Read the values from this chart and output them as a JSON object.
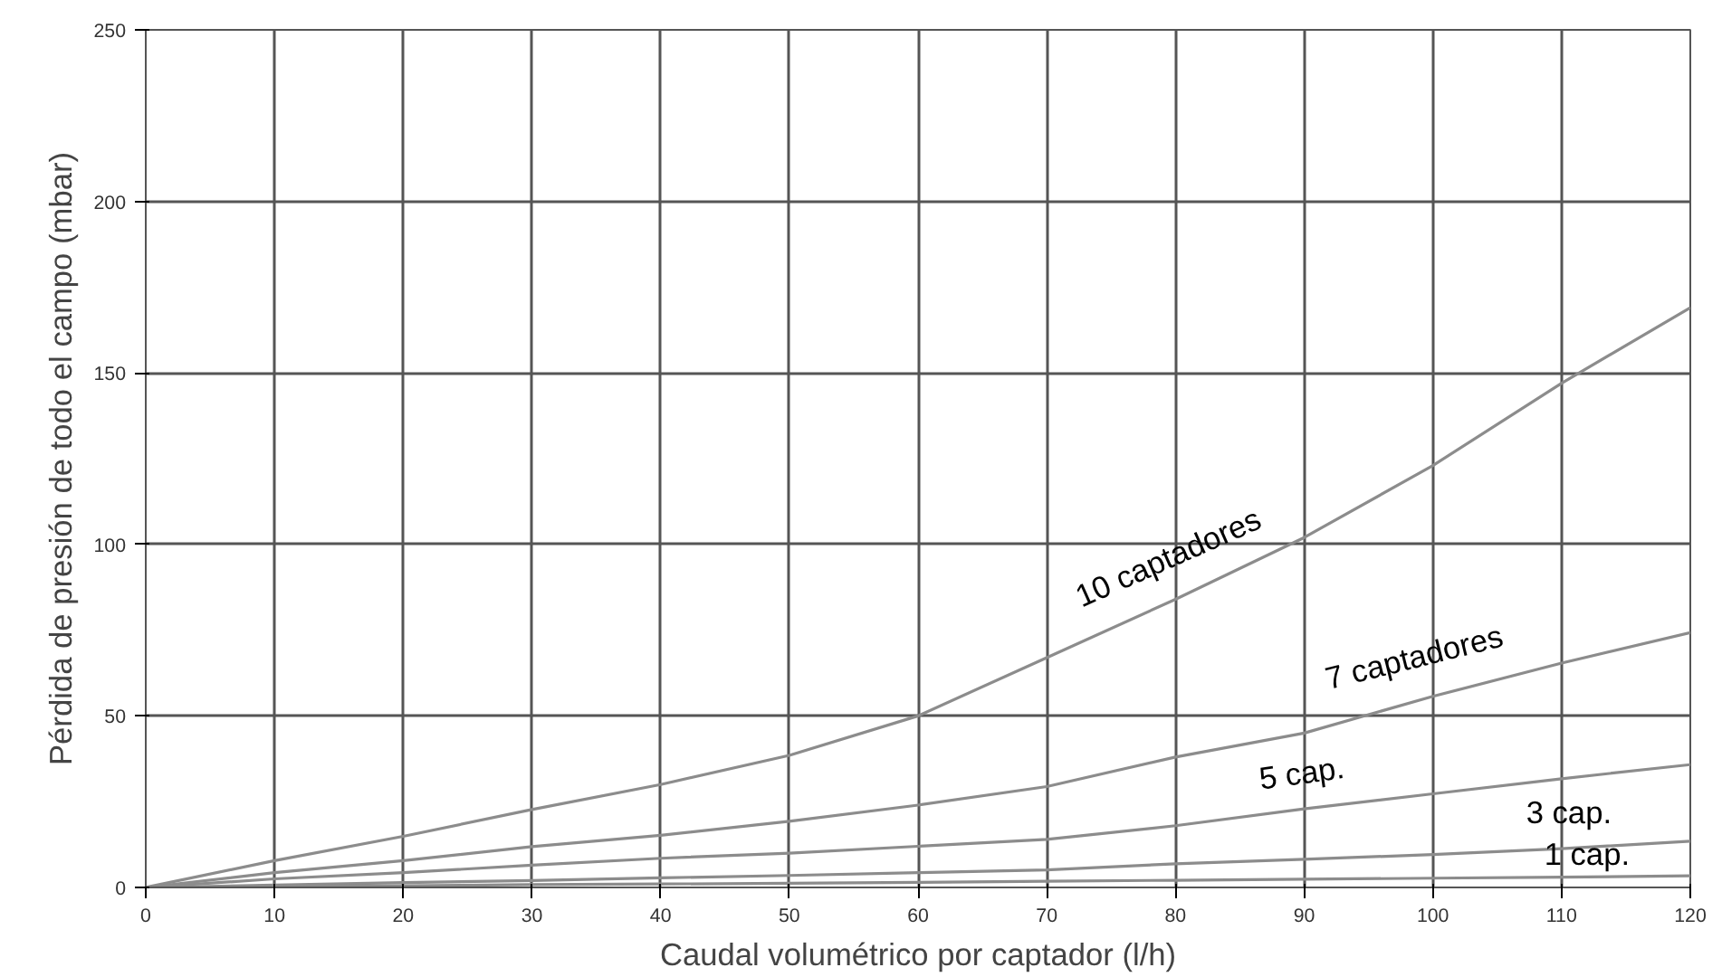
{
  "chart_data": {
    "type": "line",
    "xlabel": "Caudal volumétrico por captador (l/h)",
    "ylabel": "Pérdida de presión de todo el campo (mbar)",
    "x": [
      0,
      10,
      20,
      30,
      40,
      50,
      60,
      70,
      80,
      90,
      100,
      110,
      120
    ],
    "series": [
      {
        "name": "10 captadores",
        "color": "#8c8c8c",
        "values": [
          0,
          7.8,
          14.9,
          22.7,
          30,
          38.5,
          50,
          67,
          84,
          102,
          123,
          147,
          169
        ]
      },
      {
        "name": "7 captadores",
        "color": "#8c8c8c",
        "values": [
          0,
          4.3,
          7.8,
          11.9,
          15.2,
          19.3,
          24,
          29.4,
          38,
          45,
          55.7,
          65.4,
          74.3
        ]
      },
      {
        "name": "5 cap.",
        "color": "#8c8c8c",
        "values": [
          0,
          2.5,
          4.3,
          6.5,
          8.5,
          10,
          12,
          14,
          18,
          22.9,
          27.3,
          31.7,
          35.8
        ]
      },
      {
        "name": "3 cap.",
        "color": "#8c8c8c",
        "values": [
          0,
          0.7,
          1.4,
          2,
          2.8,
          3.5,
          4.3,
          5.1,
          6.9,
          8.2,
          9.6,
          11.3,
          13.5
        ]
      },
      {
        "name": "1 cap.",
        "color": "#8c8c8c",
        "values": [
          0,
          0.3,
          0.5,
          0.8,
          1,
          1.2,
          1.5,
          1.8,
          2.1,
          2.4,
          2.7,
          3,
          3.4
        ]
      }
    ],
    "xlim": [
      0,
      120
    ],
    "ylim": [
      0,
      250
    ],
    "xticks": [
      0,
      10,
      20,
      30,
      40,
      50,
      60,
      70,
      80,
      90,
      100,
      110,
      120
    ],
    "yticks": [
      0,
      50,
      100,
      150,
      200,
      250
    ],
    "grid": true,
    "legend": false,
    "marker": "none",
    "line_style": "solid"
  }
}
